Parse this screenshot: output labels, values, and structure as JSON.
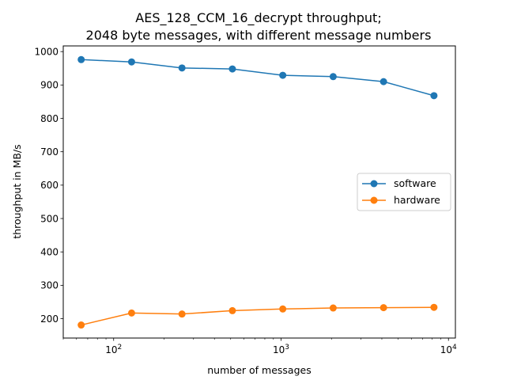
{
  "chart_data": {
    "type": "line",
    "title_lines": [
      "AES_128_CCM_16_decrypt throughput;",
      "2048 byte messages, with different message numbers"
    ],
    "xlabel": "number of messages",
    "ylabel": "throughput in MB/s",
    "xscale": "log",
    "xlim": [
      50,
      11000
    ],
    "ylim": [
      142,
      1017
    ],
    "x_ticks": [
      {
        "value": 100,
        "base": "10",
        "exp": "2"
      },
      {
        "value": 1000,
        "base": "10",
        "exp": "3"
      },
      {
        "value": 10000,
        "base": "10",
        "exp": "4"
      }
    ],
    "y_ticks": [
      200,
      300,
      400,
      500,
      600,
      700,
      800,
      900,
      1000
    ],
    "x": [
      64,
      128,
      256,
      512,
      1024,
      2048,
      4096,
      8192
    ],
    "series": [
      {
        "name": "software",
        "color": "#1f77b4",
        "marker": "circle",
        "values": [
          976,
          969,
          951,
          948,
          929,
          925,
          910,
          868
        ]
      },
      {
        "name": "hardware",
        "color": "#ff7f0e",
        "marker": "circle",
        "values": [
          181,
          217,
          214,
          224,
          229,
          232,
          233,
          234
        ]
      }
    ],
    "legend_position": "center-right",
    "grid": false
  }
}
